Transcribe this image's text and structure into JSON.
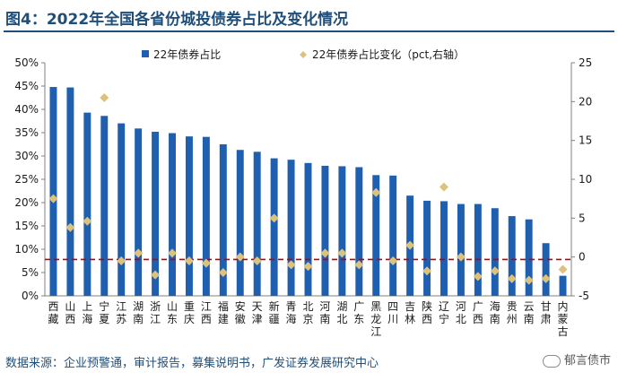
{
  "title": "图4：2022年全国各省份城投债券占比及变化情况",
  "source": "数据来源：企业预警通，审计报告，募集说明书，广发证券发展研究中心",
  "watermark": "郁言债市",
  "colors": {
    "bar": "#1f5fb0",
    "marker": "#dcc27c",
    "baseline": "#c00000",
    "title": "#1f4e79"
  },
  "chart_data": {
    "type": "bar",
    "categories": [
      "西藏",
      "山西",
      "上海",
      "宁夏",
      "江苏",
      "湖南",
      "浙江",
      "山东",
      "重庆",
      "江西",
      "福建",
      "安徽",
      "天津",
      "新疆",
      "青海",
      "北京",
      "河南",
      "湖北",
      "广东",
      "黑龙江",
      "四川",
      "吉林",
      "陕西",
      "辽宁",
      "河北",
      "广西",
      "海南",
      "贵州",
      "云南",
      "甘肃",
      "内蒙古"
    ],
    "series": [
      {
        "name": "22年债券占比",
        "type": "bar",
        "axis": "left",
        "values": [
          44.8,
          44.7,
          39.3,
          38.6,
          37.0,
          35.9,
          35.2,
          34.9,
          34.2,
          34.1,
          32.5,
          31.3,
          30.9,
          29.5,
          29.2,
          28.5,
          27.9,
          27.8,
          27.6,
          25.9,
          25.8,
          21.5,
          20.4,
          20.3,
          19.7,
          19.7,
          18.8,
          17.1,
          16.4,
          11.3,
          4.3
        ]
      },
      {
        "name": "22年债券占比变化（pct,右轴）",
        "type": "scatter",
        "axis": "right",
        "values": [
          7.5,
          3.8,
          4.6,
          20.5,
          -0.5,
          0.5,
          -2.3,
          0.5,
          -0.5,
          -0.8,
          -2.0,
          0.0,
          -0.5,
          5.0,
          -1.0,
          -1.2,
          0.5,
          0.5,
          -1.0,
          8.3,
          -0.5,
          1.5,
          -1.8,
          9.0,
          0.0,
          -2.5,
          -1.8,
          -2.8,
          -3.0,
          -2.8,
          -1.6
        ]
      }
    ],
    "reference_line": {
      "value": 7.8,
      "axis": "left",
      "style": "dashed"
    },
    "y_left": {
      "ylim": [
        0,
        50
      ],
      "ticks": [
        "0%",
        "5%",
        "10%",
        "15%",
        "20%",
        "25%",
        "30%",
        "35%",
        "40%",
        "45%",
        "50%"
      ]
    },
    "y_right": {
      "ylim": [
        -5,
        25
      ],
      "ticks": [
        "-5",
        "0",
        "5",
        "10",
        "15",
        "20",
        "25"
      ]
    },
    "legend_position": "top-center"
  }
}
